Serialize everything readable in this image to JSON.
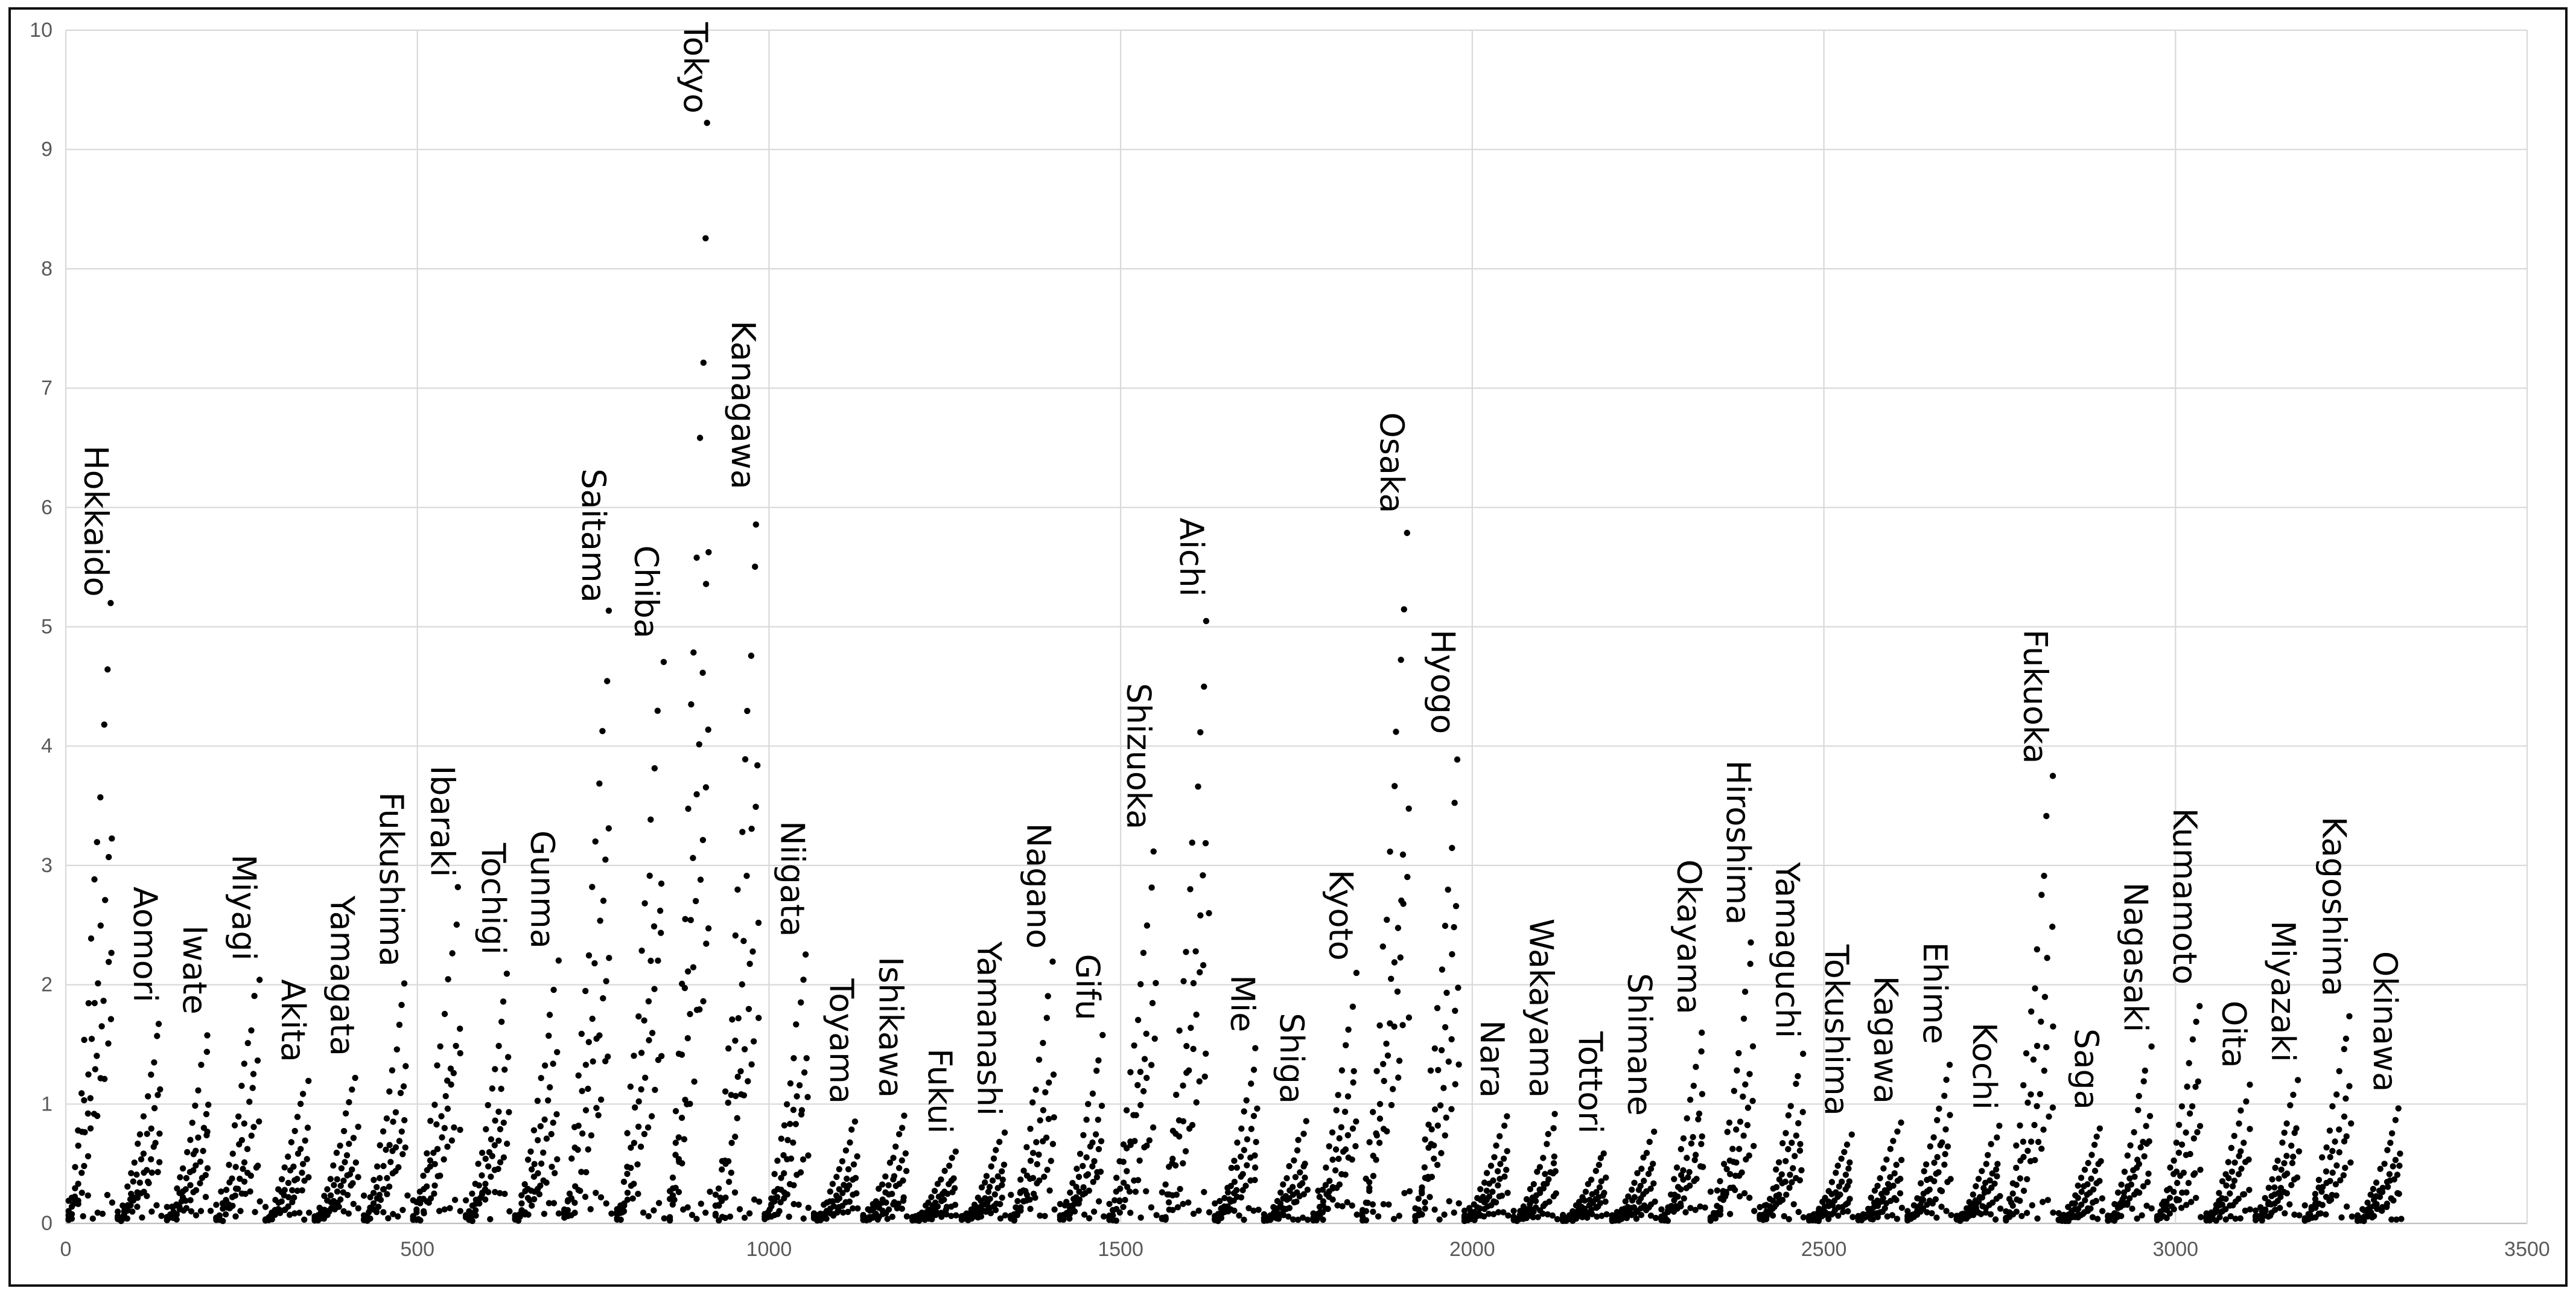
{
  "chart_data": {
    "type": "scatter",
    "title": "",
    "xlabel": "",
    "ylabel": "",
    "xlim": [
      0,
      3500
    ],
    "ylim": [
      0,
      10
    ],
    "x_ticks": [
      "0",
      "500",
      "1000",
      "1500",
      "2000",
      "2500",
      "3000",
      "3500"
    ],
    "y_ticks": [
      "0",
      "1",
      "2",
      "3",
      "4",
      "5",
      "6",
      "7",
      "8",
      "9",
      "10"
    ],
    "grid": true,
    "legend": "none",
    "marker_color": "#000000",
    "grid_color": "#d9d9d9",
    "series_note": "",
    "groups": [
      {
        "label": "Hokkaido",
        "x_start": 0,
        "x_end": 70,
        "peak": 5.1
      },
      {
        "label": "Aomori",
        "x_start": 70,
        "x_end": 140,
        "peak": 1.7
      },
      {
        "label": "Iwate",
        "x_start": 140,
        "x_end": 210,
        "peak": 1.6
      },
      {
        "label": "Miyagi",
        "x_start": 210,
        "x_end": 280,
        "peak": 2.05
      },
      {
        "label": "Akita",
        "x_start": 280,
        "x_end": 350,
        "peak": 1.2
      },
      {
        "label": "Yamagata",
        "x_start": 350,
        "x_end": 420,
        "peak": 1.25
      },
      {
        "label": "Fukushima",
        "x_start": 420,
        "x_end": 490,
        "peak": 2.0
      },
      {
        "label": "Ibaraki",
        "x_start": 490,
        "x_end": 565,
        "peak": 2.75
      },
      {
        "label": "Tochigi",
        "x_start": 565,
        "x_end": 635,
        "peak": 2.1
      },
      {
        "label": "Gunma",
        "x_start": 635,
        "x_end": 705,
        "peak": 2.15
      },
      {
        "label": "Saitama",
        "x_start": 705,
        "x_end": 780,
        "peak": 5.05
      },
      {
        "label": "Chiba",
        "x_start": 780,
        "x_end": 855,
        "peak": 4.75
      },
      {
        "label": "Tokyo",
        "x_start": 855,
        "x_end": 920,
        "peak": 9.15
      },
      {
        "label": "Kanagawa",
        "x_start": 920,
        "x_end": 990,
        "peak": 6.0
      },
      {
        "label": "Niigata",
        "x_start": 990,
        "x_end": 1060,
        "peak": 2.25
      },
      {
        "label": "Toyama",
        "x_start": 1060,
        "x_end": 1130,
        "peak": 0.85
      },
      {
        "label": "Ishikawa",
        "x_start": 1130,
        "x_end": 1200,
        "peak": 0.9
      },
      {
        "label": "Fukui",
        "x_start": 1200,
        "x_end": 1270,
        "peak": 0.6
      },
      {
        "label": "Yamanashi",
        "x_start": 1270,
        "x_end": 1340,
        "peak": 0.75
      },
      {
        "label": "Nagano",
        "x_start": 1340,
        "x_end": 1410,
        "peak": 2.15
      },
      {
        "label": "Gifu",
        "x_start": 1410,
        "x_end": 1480,
        "peak": 1.55
      },
      {
        "label": "Shizuoka",
        "x_start": 1480,
        "x_end": 1555,
        "peak": 3.15
      },
      {
        "label": "Aichi",
        "x_start": 1555,
        "x_end": 1630,
        "peak": 5.1
      },
      {
        "label": "Mie",
        "x_start": 1630,
        "x_end": 1700,
        "peak": 1.45
      },
      {
        "label": "Shiga",
        "x_start": 1700,
        "x_end": 1770,
        "peak": 0.85
      },
      {
        "label": "Kyoto",
        "x_start": 1770,
        "x_end": 1840,
        "peak": 2.05
      },
      {
        "label": "Osaka",
        "x_start": 1840,
        "x_end": 1915,
        "peak": 5.8
      },
      {
        "label": "Hyogo",
        "x_start": 1915,
        "x_end": 1985,
        "peak": 3.95
      },
      {
        "label": "Nara",
        "x_start": 1985,
        "x_end": 2055,
        "peak": 0.9
      },
      {
        "label": "Wakayama",
        "x_start": 2055,
        "x_end": 2125,
        "peak": 0.9
      },
      {
        "label": "Tottori",
        "x_start": 2125,
        "x_end": 2195,
        "peak": 0.6
      },
      {
        "label": "Shimane",
        "x_start": 2195,
        "x_end": 2265,
        "peak": 0.75
      },
      {
        "label": "Okayama",
        "x_start": 2265,
        "x_end": 2335,
        "peak": 1.6
      },
      {
        "label": "Hiroshima",
        "x_start": 2335,
        "x_end": 2405,
        "peak": 2.35
      },
      {
        "label": "Yamaguchi",
        "x_start": 2405,
        "x_end": 2475,
        "peak": 1.4
      },
      {
        "label": "Tokushima",
        "x_start": 2475,
        "x_end": 2545,
        "peak": 0.75
      },
      {
        "label": "Kagawa",
        "x_start": 2545,
        "x_end": 2615,
        "peak": 0.85
      },
      {
        "label": "Ehime",
        "x_start": 2615,
        "x_end": 2685,
        "peak": 1.35
      },
      {
        "label": "Kochi",
        "x_start": 2685,
        "x_end": 2755,
        "peak": 0.8
      },
      {
        "label": "Fukuoka",
        "x_start": 2755,
        "x_end": 2830,
        "peak": 3.7
      },
      {
        "label": "Saga",
        "x_start": 2830,
        "x_end": 2900,
        "peak": 0.8
      },
      {
        "label": "Nagasaki",
        "x_start": 2900,
        "x_end": 2970,
        "peak": 1.45
      },
      {
        "label": "Kumamoto",
        "x_start": 2970,
        "x_end": 3040,
        "peak": 1.85
      },
      {
        "label": "Oita",
        "x_start": 3040,
        "x_end": 3110,
        "peak": 1.15
      },
      {
        "label": "Miyazaki",
        "x_start": 3110,
        "x_end": 3180,
        "peak": 1.2
      },
      {
        "label": "Kagoshima",
        "x_start": 3180,
        "x_end": 3255,
        "peak": 1.75
      },
      {
        "label": "Okinawa",
        "x_start": 3255,
        "x_end": 3325,
        "peak": 0.95
      }
    ]
  }
}
